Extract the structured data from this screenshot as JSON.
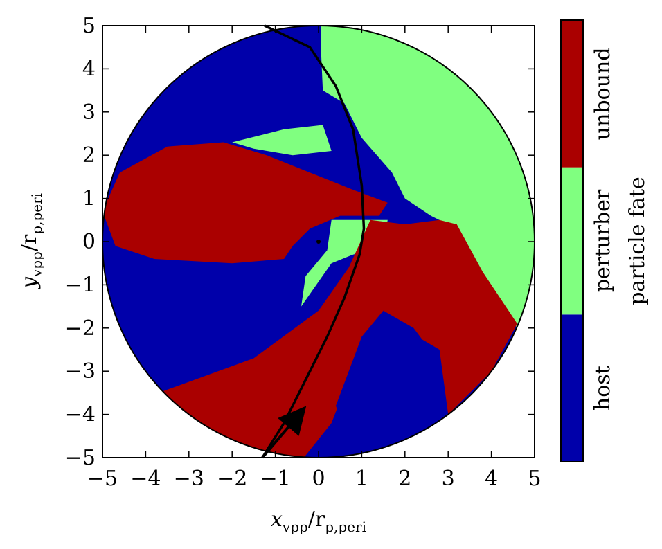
{
  "chart_data": {
    "type": "heatmap",
    "description_units": "r_p,peri",
    "xlabel": {
      "main": "x",
      "sub1": "vpp",
      "mid": "/r",
      "sub2": "p,peri"
    },
    "ylabel": {
      "main": "y",
      "sub1": "vpp",
      "mid": "/r",
      "sub2": "p,peri"
    },
    "xlim": [
      -5,
      5
    ],
    "ylim": [
      -5,
      5
    ],
    "xticks": [
      -5,
      -4,
      -3,
      -2,
      -1,
      0,
      1,
      2,
      3,
      4,
      5
    ],
    "yticks": [
      -5,
      -4,
      -3,
      -2,
      -1,
      0,
      1,
      2,
      3,
      4,
      5
    ],
    "xtick_labels": [
      "−5",
      "−4",
      "−3",
      "−2",
      "−1",
      "0",
      "1",
      "2",
      "3",
      "4",
      "5"
    ],
    "ytick_labels": [
      "−5",
      "−4",
      "−3",
      "−2",
      "−1",
      "0",
      "1",
      "2",
      "3",
      "4",
      "5"
    ],
    "disk_radius": 5,
    "categories": [
      {
        "name": "host",
        "color": "#0000aa"
      },
      {
        "name": "perturber",
        "color": "#80ff80"
      },
      {
        "name": "unbound",
        "color": "#aa0000"
      }
    ],
    "colorbar_title": "particle fate",
    "host_position": [
      0,
      0
    ],
    "perturber_trajectory": [
      [
        -1.3,
        -5.0
      ],
      [
        -0.8,
        -4.2
      ],
      [
        -0.3,
        -3.2
      ],
      [
        0.2,
        -2.2
      ],
      [
        0.6,
        -1.3
      ],
      [
        0.95,
        -0.3
      ],
      [
        1.05,
        0.3
      ],
      [
        1.0,
        1.3
      ],
      [
        0.8,
        2.6
      ],
      [
        0.4,
        3.6
      ],
      [
        -0.2,
        4.5
      ],
      [
        -1.25,
        5.0
      ]
    ],
    "arrow": {
      "from": [
        -1.3,
        -5.0
      ],
      "to": [
        -0.45,
        -4.0
      ]
    }
  }
}
